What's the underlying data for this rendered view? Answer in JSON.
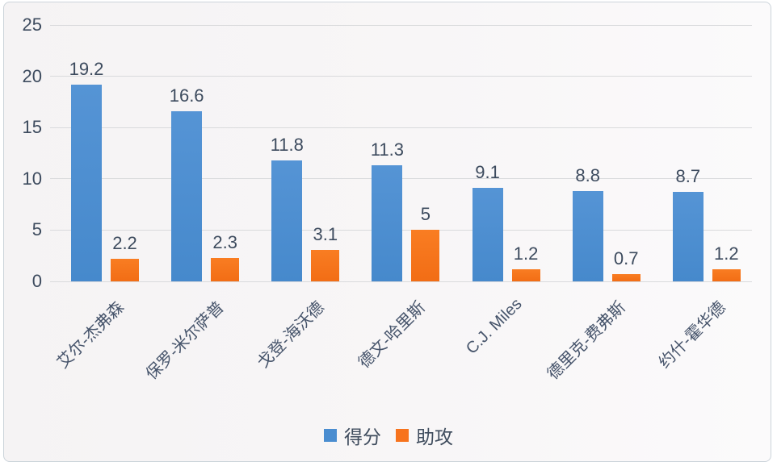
{
  "chart_data": {
    "type": "bar",
    "title": "",
    "xlabel": "",
    "ylabel": "",
    "categories": [
      "艾尔-杰弗森",
      "保罗-米尔萨普",
      "戈登-海沃德",
      "德文-哈里斯",
      "C.J. Miles",
      "德里克-费弗斯",
      "约什-霍华德"
    ],
    "series": [
      {
        "name": "得分",
        "color": "#4a8dd0",
        "values": [
          19.2,
          16.6,
          11.8,
          11.3,
          9.1,
          8.8,
          8.7
        ],
        "labels": [
          "19.2",
          "16.6",
          "11.8",
          "11.3",
          "9.1",
          "8.8",
          "8.7"
        ]
      },
      {
        "name": "助攻",
        "color": "#f7731d",
        "values": [
          2.2,
          2.3,
          3.1,
          5,
          1.2,
          0.7,
          1.2
        ],
        "labels": [
          "2.2",
          "2.3",
          "3.1",
          "5",
          "1.2",
          "0.7",
          "1.2"
        ]
      }
    ],
    "y_ticks": [
      0,
      5,
      10,
      15,
      20,
      25
    ],
    "y_tick_labels": [
      "0",
      "5",
      "10",
      "15",
      "20",
      "25"
    ],
    "ylim": [
      0,
      25
    ],
    "grid": true,
    "legend_position": "bottom",
    "colors": {
      "gridline": "#d9dadc",
      "label_text": "#3d4b5e",
      "axis_text": "#46546b",
      "frame_border": "#ccd4da",
      "background": "#f7f5f6"
    }
  }
}
